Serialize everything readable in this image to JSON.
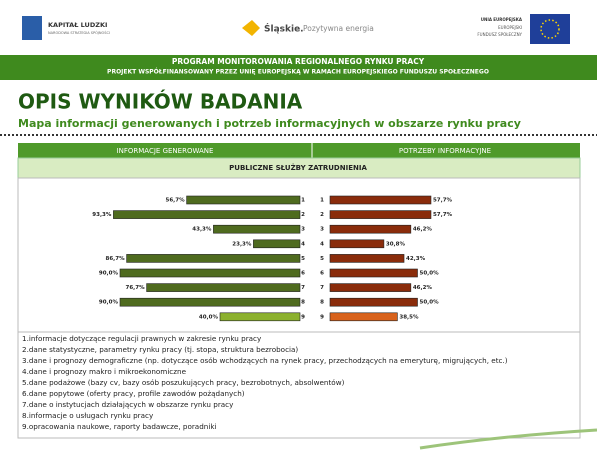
{
  "logos": {
    "left": "KAPITAŁ LUDZKI",
    "left_sub": "NARODOWA STRATEGIA SPÓJNOŚCI",
    "middle": "Śląskie.",
    "middle_sub": "Pozytywna energia",
    "right": "UNIA EUROPEJSKA",
    "right_sub1": "EUROPEJSKI",
    "right_sub2": "FUNDUSZ SPOŁECZNY"
  },
  "band": {
    "line1": "PROGRAM MONITOROWANIA REGIONALNEGO RYNKU PRACY",
    "line2": "PROJEKT WSPÓŁFINANSOWANY PRZEZ UNIĘ EUROPEJSKĄ W RAMACH EUROPEJSKIEGO FUNDUSZU SPOŁECZNEGO"
  },
  "title": "OPIS WYNIKÓW BADANIA",
  "subtitle": "Mapa informacji generowanych i potrzeb informacyjnych w obszarze rynku pracy",
  "table_subheader": "PUBLICZNE SŁUŻBY ZATRUDNIENIA",
  "chart_data": [
    {
      "type": "bar",
      "title": "INFORMACJE GENEROWANE",
      "categories": [
        "1",
        "2",
        "3",
        "4",
        "5",
        "6",
        "7",
        "8",
        "9"
      ],
      "values": [
        56.7,
        93.3,
        43.3,
        23.3,
        86.7,
        90.0,
        76.7,
        90.0,
        40.0
      ],
      "value_labels": [
        "56,7%",
        "93,3%",
        "43,3%",
        "23,3%",
        "86,7%",
        "90,0%",
        "76,7%",
        "90,0%",
        "40,0%"
      ],
      "colors": [
        "#4f6b1f",
        "#4f6b1f",
        "#4f6b1f",
        "#4f6b1f",
        "#4f6b1f",
        "#4f6b1f",
        "#4f6b1f",
        "#4f6b1f",
        "#8cb12e"
      ],
      "xlim": [
        0,
        100
      ]
    },
    {
      "type": "bar",
      "title": "POTRZEBY INFORMACYJNE",
      "categories": [
        "1",
        "2",
        "3",
        "4",
        "5",
        "6",
        "7",
        "8",
        "9"
      ],
      "values": [
        57.7,
        57.7,
        46.2,
        30.8,
        42.3,
        50.0,
        46.2,
        50.0,
        38.5
      ],
      "value_labels": [
        "57,7%",
        "57,7%",
        "46,2%",
        "30,8%",
        "42,3%",
        "50,0%",
        "46,2%",
        "50,0%",
        "38,5%"
      ],
      "colors": [
        "#8a2c0b",
        "#8a2c0b",
        "#8a2c0b",
        "#8a2c0b",
        "#8a2c0b",
        "#8a2c0b",
        "#8a2c0b",
        "#8a2c0b",
        "#d8621c"
      ],
      "xlim": [
        0,
        100
      ]
    }
  ],
  "legend": [
    "1.informacje dotyczące regulacji prawnych w zakresie rynku pracy",
    "2.dane statystyczne, parametry rynku pracy (tj. stopa, struktura bezrobocia)",
    "3.dane i prognozy demograficzne (np. dotyczące osób wchodzących na rynek pracy, przechodzących na emeryturę, migrujących, etc.)",
    "4.dane i prognozy makro i mikroekonomiczne",
    "5.dane podażowe (bazy cv, bazy osób poszukujących pracy, bezrobotnych, absolwentów)",
    "6.dane popytowe (oferty pracy, profile zawodów pożądanych)",
    "7.dane o instytucjach działających w obszarze rynku pracy",
    "8.informacje o usługach rynku pracy",
    "9.opracowania naukowe, raporty badawcze, poradniki"
  ]
}
